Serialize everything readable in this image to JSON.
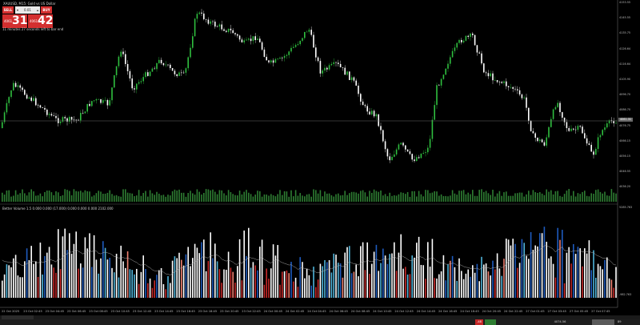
{
  "symbol_line": "XAUUSD, M15: Gold vs US Dollar",
  "trade_panel": {
    "sell_label": "SELL",
    "buy_label": "BUY",
    "lots_minus": "▾",
    "lots_value": "0.01",
    "lots_plus": "▴",
    "sell_small": "4061",
    "sell_big": "31",
    "buy_small": "4061",
    "buy_big": "42"
  },
  "countdown": "11 minutes 27 seconds left to bar end",
  "indicator_label": "Better Volume 1.5 0.000 0.000 (17.000) 0.000 0.000 0.000 2102.000",
  "price_axis": [
    "4153.55",
    "4145.55",
    "4135.75",
    "4126.64",
    "4116.64",
    "4105.90",
    "4096.70",
    "4086.70",
    "4076.75",
    "4066.15",
    "4056.15",
    "4046.55",
    "4036.20"
  ],
  "current_price": "4061.31",
  "volume_axis": [
    "5285.763",
    "-982.763"
  ],
  "time_axis": [
    "22 Oct 2025",
    "23 Oct 02:45",
    "23 Oct 04:45",
    "23 Oct 06:45",
    "23 Oct 08:45",
    "23 Oct 10:45",
    "23 Oct 12:45",
    "23 Oct 14:45",
    "23 Oct 16:45",
    "23 Oct 18:45",
    "23 Oct 20:45",
    "23 Oct 22:45",
    "24 Oct 00:45",
    "24 Oct 02:45",
    "24 Oct 04:45",
    "24 Oct 06:45",
    "24 Oct 08:45",
    "24 Oct 10:45",
    "24 Oct 12:45",
    "24 Oct 14:45",
    "24 Oct 16:45",
    "24 Oct 18:45",
    "24 Oct 20:45",
    "24 Oct 22:45",
    "27 Oct 01:45",
    "27 Oct 03:45",
    "27 Oct 05:45",
    "27 Oct 07:45"
  ],
  "status_bar": {
    "center_value": "4074.56",
    "left_value": "-48",
    "pct_value": "89"
  },
  "colors": {
    "up_candle": "#2fbf3f",
    "down_candle": "#ffffff",
    "volume_white": "#ffffff",
    "volume_red": "#c62828",
    "volume_blue": "#1e5bbf",
    "volume_cyan": "#4fb3d9",
    "volume_salmon": "#f08070",
    "trade_red": "#d32f2f"
  }
}
